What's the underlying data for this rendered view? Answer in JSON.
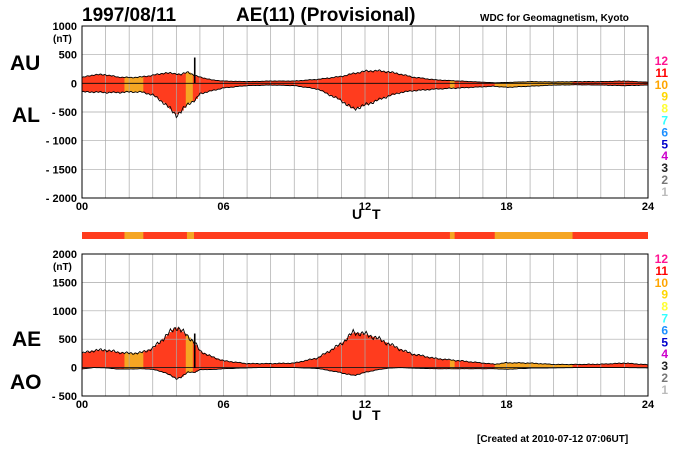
{
  "header": {
    "date": "1997/08/11",
    "index_title": "AE(11) (Provisional)",
    "source": "WDC for Geomagnetism, Kyoto"
  },
  "footer": {
    "created": "[Created at 2010-07-12 07:06UT]"
  },
  "colors": {
    "series_fill": "#ff3c1e",
    "lowcount_fill": "#f5a623",
    "outline": "#000000",
    "grid": "#a9a9a9"
  },
  "chart_data": [
    {
      "type": "area",
      "panel": "AU/AL",
      "upper_label": "AU",
      "lower_label": "AL",
      "unit_label": "(nT)",
      "xlabel": "U T",
      "xlim": [
        0,
        24
      ],
      "ylim": [
        -2000,
        1000
      ],
      "yticks": [
        1000,
        500,
        0,
        -500,
        -1000,
        -1500,
        -2000
      ],
      "ytick_labels": [
        "1000",
        "500",
        "0",
        "- 500",
        "- 1000",
        "- 1500",
        "- 2000"
      ],
      "xticks": [
        0,
        6,
        12,
        18,
        24
      ],
      "xtick_labels": [
        "00",
        "06",
        "12",
        "18",
        "24"
      ],
      "grid": true,
      "x": [
        0,
        0.5,
        1,
        1.5,
        2,
        2.5,
        3,
        3.5,
        4,
        4.2,
        4.5,
        4.8,
        5,
        5.5,
        6,
        7,
        8,
        9,
        10,
        11,
        11.5,
        12,
        12.5,
        13,
        13.5,
        14,
        15,
        16,
        17,
        17.5,
        18,
        19,
        20,
        21,
        22,
        23,
        24
      ],
      "upper": [
        100,
        150,
        150,
        110,
        100,
        110,
        140,
        180,
        170,
        150,
        200,
        130,
        110,
        60,
        40,
        30,
        40,
        40,
        70,
        120,
        170,
        210,
        220,
        200,
        160,
        110,
        60,
        40,
        20,
        10,
        15,
        30,
        25,
        30,
        30,
        40,
        20
      ],
      "lower": [
        -150,
        -150,
        -160,
        -160,
        -150,
        -150,
        -200,
        -350,
        -550,
        -500,
        -350,
        -300,
        -180,
        -130,
        -80,
        -40,
        -30,
        -40,
        -100,
        -300,
        -450,
        -380,
        -300,
        -220,
        -160,
        -130,
        -100,
        -80,
        -60,
        -50,
        -70,
        -50,
        -30,
        -25,
        -30,
        -40,
        -30
      ],
      "spike": {
        "x": 4.78,
        "value": 450
      },
      "lowcount_ranges": [
        [
          1.8,
          2.6
        ],
        [
          4.45,
          4.75
        ],
        [
          15.6,
          15.8
        ],
        [
          17.5,
          20.8
        ]
      ]
    },
    {
      "type": "area",
      "panel": "AE/AO",
      "upper_label": "AE",
      "lower_label": "AO",
      "unit_label": "(nT)",
      "xlabel": "U T",
      "xlim": [
        0,
        24
      ],
      "ylim": [
        -500,
        2000
      ],
      "yticks": [
        2000,
        1500,
        1000,
        500,
        0,
        -500
      ],
      "ytick_labels": [
        "2000",
        "1500",
        "1000",
        "500",
        "0",
        "- 500"
      ],
      "xticks": [
        0,
        6,
        12,
        18,
        24
      ],
      "xtick_labels": [
        "00",
        "06",
        "12",
        "18",
        "24"
      ],
      "grid": true,
      "x": [
        0,
        0.5,
        1,
        1.5,
        2,
        2.5,
        3,
        3.5,
        4,
        4.2,
        4.5,
        4.8,
        5,
        5.5,
        6,
        7,
        8,
        9,
        10,
        11,
        11.5,
        12,
        12.5,
        13,
        13.5,
        14,
        15,
        16,
        17,
        17.5,
        18,
        19,
        20,
        21,
        22,
        23,
        24
      ],
      "upper": [
        250,
        300,
        310,
        270,
        250,
        260,
        340,
        530,
        720,
        650,
        550,
        430,
        290,
        190,
        120,
        70,
        70,
        80,
        170,
        420,
        620,
        590,
        520,
        420,
        320,
        240,
        160,
        120,
        80,
        60,
        85,
        80,
        55,
        55,
        60,
        80,
        50
      ],
      "lower": [
        -25,
        0,
        -5,
        -25,
        -25,
        -20,
        -30,
        -85,
        -190,
        -175,
        -75,
        -85,
        -35,
        -35,
        -20,
        -5,
        5,
        0,
        -15,
        -90,
        -140,
        -85,
        -40,
        -10,
        0,
        -10,
        -20,
        -20,
        -20,
        -20,
        -30,
        -10,
        -5,
        0,
        0,
        0,
        -5
      ],
      "spike": {
        "x": 4.78,
        "value": 600
      },
      "lowcount_ranges": [
        [
          1.8,
          2.6
        ],
        [
          4.45,
          4.75
        ],
        [
          15.6,
          15.8
        ],
        [
          17.5,
          20.8
        ]
      ]
    }
  ],
  "status_bar": {
    "base_color": "#ff3c1e",
    "lowcount_ranges": [
      [
        1.8,
        2.6
      ],
      [
        4.45,
        4.75
      ],
      [
        15.6,
        15.8
      ],
      [
        17.5,
        20.8
      ]
    ]
  },
  "station_legend": {
    "labels": [
      "12",
      "11",
      "10",
      "9",
      "8",
      "7",
      "6",
      "5",
      "4",
      "3",
      "2",
      "1"
    ],
    "colors": [
      "#ff1493",
      "#ff0000",
      "#ffa500",
      "#ffd700",
      "#ffff33",
      "#33ffff",
      "#1e90ff",
      "#0000cc",
      "#cc00cc",
      "#222222",
      "#777777",
      "#bbbbbb"
    ]
  }
}
